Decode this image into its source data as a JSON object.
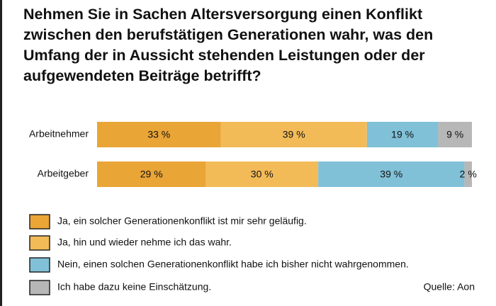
{
  "chart_data": {
    "type": "stacked-bar-horizontal",
    "title": "Nehmen Sie in Sachen Altersversorgung einen Konflikt zwischen den berufstätigen Generationen wahr, was den Umfang der in Aussicht stehenden Leistungen oder der aufgewendeten Beiträge betrifft?",
    "categories": [
      "Arbeitnehmer",
      "Arbeitgeber"
    ],
    "xlim": [
      0,
      100
    ],
    "series": [
      {
        "name": "Ja, ein solcher Generationenkonflikt ist mir sehr geläufig.",
        "color": "#eaa537",
        "values": [
          33,
          29
        ],
        "value_labels": [
          "33 %",
          "29 %"
        ]
      },
      {
        "name": "Ja, hin und wieder nehme ich das wahr.",
        "color": "#f3bb58",
        "values": [
          39,
          30
        ],
        "value_labels": [
          "39 %",
          "30 %"
        ]
      },
      {
        "name": "Nein, einen solchen Generationenkonflikt habe ich bisher nicht wahrgenommen.",
        "color": "#80c1d8",
        "values": [
          19,
          39
        ],
        "value_labels": [
          "19 %",
          "39 %"
        ]
      },
      {
        "name": "Ich habe dazu keine Einschätzung.",
        "color": "#b7b7b7",
        "values": [
          9,
          2
        ],
        "value_labels": [
          "9 %",
          "2 %"
        ]
      }
    ],
    "source": "Quelle: Aon"
  }
}
